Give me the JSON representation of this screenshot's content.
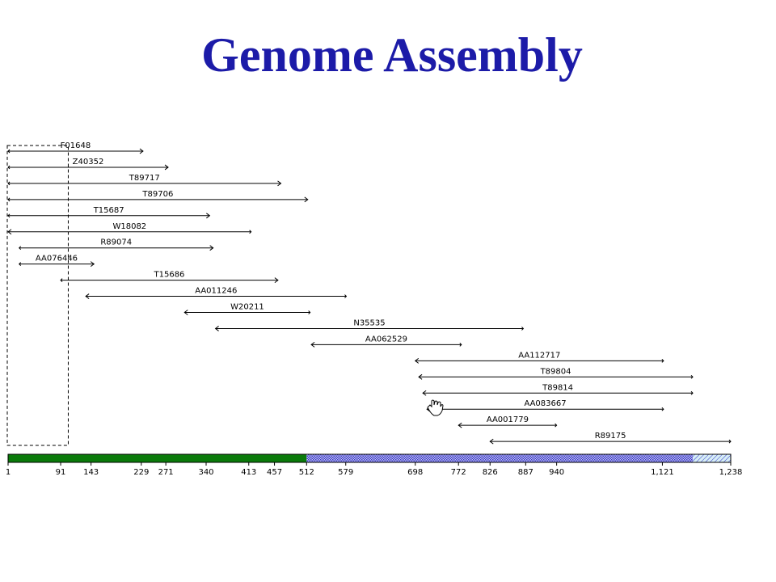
{
  "title": "Genome Assembly",
  "colors": {
    "title": "#1c1ba8",
    "assembled": "#0a7a0a",
    "unassembled_fill": "#c8c8f0",
    "unassembled_pattern": "#3434c8",
    "tail_fill": "#d6eef6",
    "line": "#000000"
  },
  "axis": {
    "min": 1,
    "max": 1238,
    "ticks": [
      {
        "value": 1,
        "label": "1"
      },
      {
        "value": 91,
        "label": "91"
      },
      {
        "value": 143,
        "label": "143"
      },
      {
        "value": 229,
        "label": "229"
      },
      {
        "value": 271,
        "label": "271"
      },
      {
        "value": 340,
        "label": "340"
      },
      {
        "value": 413,
        "label": "413"
      },
      {
        "value": 457,
        "label": "457"
      },
      {
        "value": 512,
        "label": "512"
      },
      {
        "value": 579,
        "label": "579"
      },
      {
        "value": 698,
        "label": "698"
      },
      {
        "value": 772,
        "label": "772"
      },
      {
        "value": 826,
        "label": "826"
      },
      {
        "value": 887,
        "label": "887"
      },
      {
        "value": 940,
        "label": "940"
      },
      {
        "value": 1121,
        "label": "1,121"
      },
      {
        "value": 1238,
        "label": "1,238"
      }
    ]
  },
  "contig_bar": {
    "assembled_end": 512,
    "pattern_end": 1173
  },
  "selection_box": {
    "start": 1,
    "end": 104
  },
  "reads": [
    {
      "name": "F01648",
      "start": 1,
      "end": 232,
      "dir": "forward"
    },
    {
      "name": "Z40352",
      "start": 1,
      "end": 275,
      "dir": "forward"
    },
    {
      "name": "T89717",
      "start": 1,
      "end": 468,
      "dir": "forward"
    },
    {
      "name": "T89706",
      "start": 1,
      "end": 514,
      "dir": "forward"
    },
    {
      "name": "T15687",
      "start": 1,
      "end": 346,
      "dir": "forward"
    },
    {
      "name": "W18082",
      "start": 1,
      "end": 417,
      "dir": "reverse"
    },
    {
      "name": "R89074",
      "start": 20,
      "end": 352,
      "dir": "forward"
    },
    {
      "name": "AA076446",
      "start": 20,
      "end": 148,
      "dir": "forward"
    },
    {
      "name": "T15686",
      "start": 91,
      "end": 463,
      "dir": "forward"
    },
    {
      "name": "AA011246",
      "start": 134,
      "end": 580,
      "dir": "reverse"
    },
    {
      "name": "W20211",
      "start": 303,
      "end": 518,
      "dir": "reverse"
    },
    {
      "name": "N35535",
      "start": 356,
      "end": 883,
      "dir": "reverse"
    },
    {
      "name": "AA062529",
      "start": 520,
      "end": 777,
      "dir": "reverse"
    },
    {
      "name": "AA112717",
      "start": 698,
      "end": 1123,
      "dir": "reverse"
    },
    {
      "name": "T89804",
      "start": 704,
      "end": 1173,
      "dir": "reverse"
    },
    {
      "name": "T89814",
      "start": 711,
      "end": 1173,
      "dir": "reverse"
    },
    {
      "name": "AA083667",
      "start": 718,
      "end": 1123,
      "dir": "reverse"
    },
    {
      "name": "AA001779",
      "start": 772,
      "end": 940,
      "dir": "reverse"
    },
    {
      "name": "R89175",
      "start": 826,
      "end": 1238,
      "dir": "reverse"
    }
  ]
}
